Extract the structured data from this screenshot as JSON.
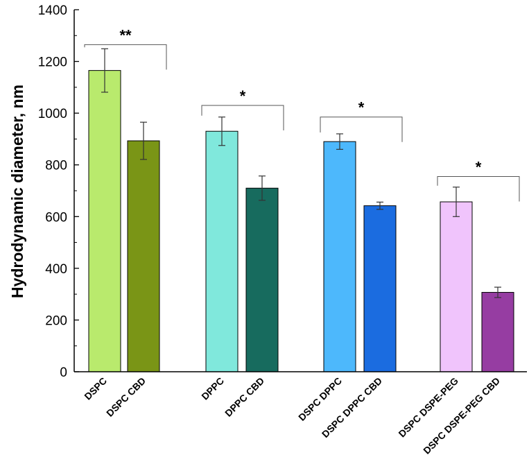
{
  "chart_data": {
    "type": "bar",
    "title": "",
    "xlabel": "",
    "ylabel": "Hydrodynamic diameter, nm",
    "ylim": [
      0,
      1400
    ],
    "yticks": [
      0,
      200,
      400,
      600,
      800,
      1000,
      1200,
      1400
    ],
    "grid": false,
    "categories": [
      "DSPC",
      "DSPC CBD",
      "DPPC",
      "DPPC CBD",
      "DSPC DPPC",
      "DSPC DPPC CBD",
      "DSPC DSPE-PEG",
      "DSPC DSPE-PEG CBD"
    ],
    "values": [
      1165,
      893,
      930,
      710,
      890,
      642,
      657,
      307
    ],
    "errors": [
      84,
      72,
      55,
      47,
      30,
      14,
      57,
      20
    ],
    "colors": [
      "#b9ea6d",
      "#7a9516",
      "#80e8dc",
      "#176b5e",
      "#4db8fc",
      "#1b6ce0",
      "#f0c4fc",
      "#963da2"
    ],
    "groups": [
      {
        "bars": [
          0,
          1
        ],
        "significance": "**",
        "bracket_y": 1265
      },
      {
        "bars": [
          2,
          3
        ],
        "significance": "*",
        "bracket_y": 1030
      },
      {
        "bars": [
          4,
          5
        ],
        "significance": "*",
        "bracket_y": 985
      },
      {
        "bars": [
          6,
          7
        ],
        "significance": "*",
        "bracket_y": 755
      }
    ]
  }
}
